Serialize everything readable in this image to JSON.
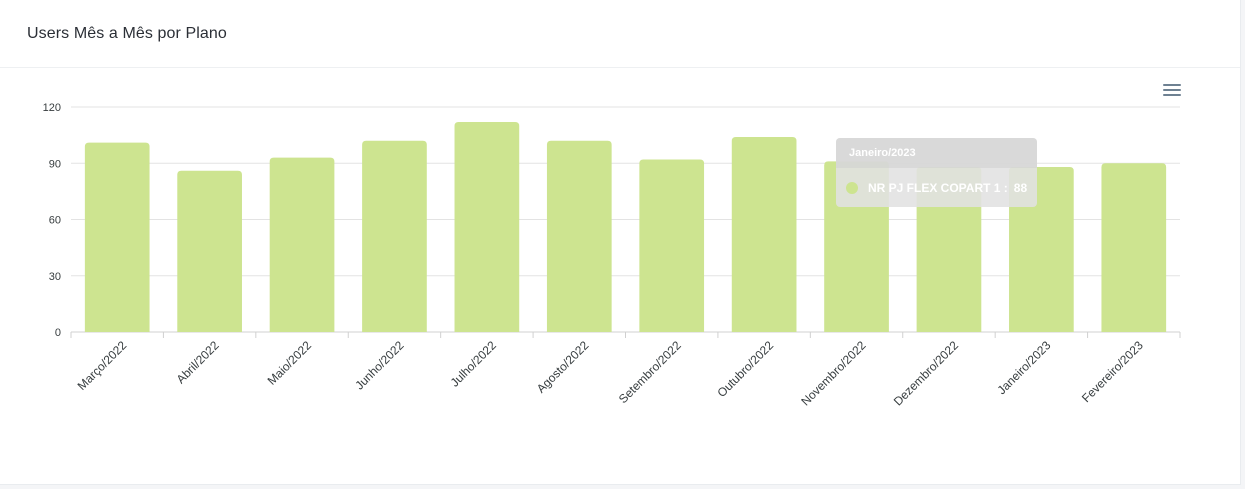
{
  "header": {
    "title": "Users Mês a Mês por Plano"
  },
  "toolbar": {
    "menu_icon": "hamburger-menu-icon"
  },
  "colors": {
    "bar": "#cde490",
    "grid": "#e3e3e3",
    "axis": "#d0d0d0",
    "text": "#373d3f"
  },
  "tooltip": {
    "title": "Janeiro/2023",
    "series_label": "NR PJ FLEX COPART 1 :",
    "value": "88"
  },
  "chart_data": {
    "type": "bar",
    "title": "Users Mês a Mês por Plano",
    "xlabel": "",
    "ylabel": "",
    "categories": [
      "Março/2022",
      "Abril/2022",
      "Maio/2022",
      "Junho/2022",
      "Julho/2022",
      "Agosto/2022",
      "Setembro/2022",
      "Outubro/2022",
      "Novembro/2022",
      "Dezembro/2022",
      "Janeiro/2023",
      "Fevereiro/2023"
    ],
    "series": [
      {
        "name": "NR PJ FLEX COPART 1",
        "values": [
          101,
          86,
          93,
          102,
          112,
          102,
          92,
          104,
          91,
          88,
          88,
          90
        ]
      }
    ],
    "ylim": [
      0,
      120
    ],
    "yticks": [
      0,
      30,
      60,
      90,
      120
    ],
    "grid": true,
    "legend": "none"
  }
}
